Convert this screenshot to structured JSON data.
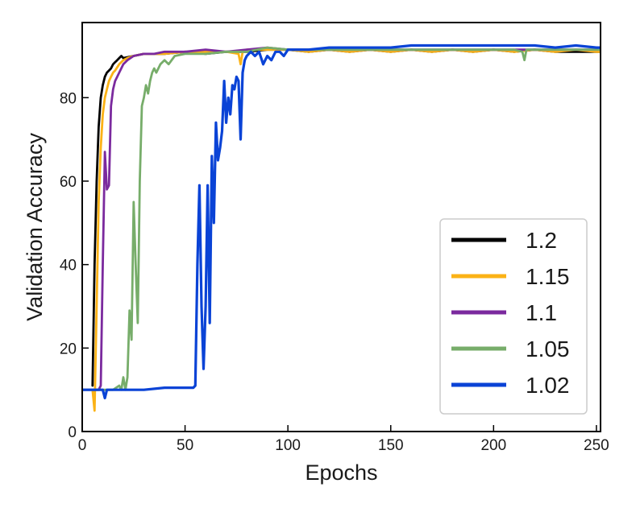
{
  "chart_data": {
    "type": "line",
    "title": "",
    "xlabel": "Epochs",
    "ylabel": "Validation Accuracy",
    "xlim": [
      0,
      252
    ],
    "ylim": [
      0,
      98
    ],
    "xticks": [
      0,
      50,
      100,
      150,
      200,
      250
    ],
    "yticks": [
      0,
      20,
      40,
      60,
      80
    ],
    "grid": false,
    "legend_position": "bottom-right",
    "series": [
      {
        "name": "1.2",
        "color": "#000000",
        "x": [
          5,
          6,
          7,
          8,
          9,
          10,
          11,
          12,
          13,
          14,
          15,
          16,
          17,
          18,
          19,
          20,
          25,
          30,
          40,
          50,
          60,
          70,
          80,
          90,
          100,
          110,
          120,
          130,
          140,
          150,
          160,
          170,
          180,
          190,
          200,
          210,
          220,
          230,
          240,
          250,
          252
        ],
        "y": [
          11,
          40,
          60,
          73,
          80,
          83,
          85,
          86,
          86.5,
          87,
          88,
          88.5,
          89,
          89.5,
          90,
          89.5,
          90,
          90.5,
          90.5,
          91,
          90.5,
          91,
          91,
          91.5,
          91.5,
          91,
          91.5,
          91,
          91.5,
          91,
          91.5,
          91,
          91.5,
          91,
          91.5,
          91,
          91.5,
          91,
          91,
          91,
          91
        ]
      },
      {
        "name": "1.15",
        "color": "#fbb216",
        "x": [
          5,
          6,
          7,
          8,
          9,
          10,
          11,
          12,
          13,
          14,
          15,
          16,
          18,
          20,
          22,
          25,
          30,
          40,
          50,
          60,
          70,
          76,
          77,
          78,
          80,
          90,
          100,
          110,
          120,
          130,
          140,
          150,
          160,
          170,
          180,
          190,
          200,
          210,
          220,
          230,
          240,
          250,
          252
        ],
        "y": [
          10,
          5,
          30,
          55,
          68,
          76,
          80,
          82,
          84,
          85,
          86,
          86.5,
          88,
          89,
          89.5,
          90,
          90.5,
          90.5,
          91,
          91,
          91,
          90.5,
          88,
          91,
          91.5,
          91.5,
          91.5,
          91,
          91.5,
          91,
          91.5,
          91,
          91.5,
          91,
          91.5,
          91,
          91.5,
          91,
          91.5,
          91,
          91.5,
          91,
          91
        ]
      },
      {
        "name": "1.1",
        "color": "#7b2a9e",
        "x": [
          0,
          5,
          8,
          9,
          10,
          11,
          12,
          13,
          14,
          15,
          16,
          17,
          18,
          20,
          22,
          25,
          30,
          35,
          40,
          50,
          60,
          70,
          80,
          90,
          100,
          110,
          120,
          130,
          140,
          150,
          160,
          170,
          180,
          190,
          200,
          210,
          220,
          230,
          240,
          250,
          252
        ],
        "y": [
          10,
          10,
          10,
          11,
          40,
          67,
          58,
          59,
          78,
          82,
          84,
          85,
          86,
          88,
          89,
          90,
          90.5,
          90.5,
          91,
          91,
          91.5,
          91,
          91.5,
          92,
          91.5,
          91.5,
          91.5,
          91.5,
          91.5,
          91.5,
          91.5,
          91.5,
          91.5,
          91.5,
          91.5,
          91.5,
          91.5,
          91.5,
          91.5,
          91.5,
          91.5
        ]
      },
      {
        "name": "1.05",
        "color": "#77ad6a",
        "x": [
          0,
          10,
          15,
          18,
          19,
          20,
          21,
          22,
          23,
          24,
          25,
          26,
          27,
          28,
          29,
          30,
          31,
          32,
          33,
          34,
          35,
          36,
          38,
          40,
          42,
          45,
          50,
          60,
          70,
          80,
          90,
          100,
          110,
          120,
          130,
          140,
          150,
          160,
          170,
          180,
          190,
          200,
          210,
          214,
          215,
          216,
          220,
          230,
          240,
          250,
          252
        ],
        "y": [
          10,
          10,
          10,
          11,
          10,
          13,
          10,
          13,
          29,
          22,
          55,
          40,
          26,
          60,
          78,
          80,
          83,
          81,
          84,
          86,
          87,
          86,
          88,
          89,
          88,
          90,
          90.5,
          90.5,
          91,
          91,
          92,
          91.5,
          91.5,
          91.5,
          91.5,
          91.5,
          91.5,
          91.5,
          91.5,
          91.5,
          91.5,
          91.5,
          91.5,
          91,
          89,
          91.5,
          91.5,
          91.5,
          91.5,
          91.5,
          91.5
        ]
      },
      {
        "name": "1.02",
        "color": "#0a43d6",
        "x": [
          0,
          5,
          10,
          11,
          12,
          13,
          20,
          30,
          40,
          50,
          54,
          55,
          56,
          57,
          58,
          59,
          60,
          61,
          62,
          63,
          64,
          65,
          66,
          67,
          68,
          69,
          70,
          71,
          72,
          73,
          74,
          75,
          76,
          77,
          78,
          79,
          80,
          82,
          84,
          86,
          88,
          90,
          92,
          94,
          96,
          98,
          100,
          110,
          120,
          130,
          140,
          150,
          160,
          170,
          180,
          190,
          200,
          210,
          220,
          230,
          240,
          250,
          252
        ],
        "y": [
          10,
          10,
          10,
          8,
          10,
          10,
          10,
          10,
          10.5,
          10.5,
          10.5,
          11,
          40,
          59,
          30,
          15,
          30,
          59,
          26,
          66,
          50,
          74,
          65,
          68,
          72,
          84,
          74,
          80,
          76,
          83,
          82,
          85,
          84,
          70,
          86,
          89,
          90,
          91,
          90,
          91,
          88,
          90,
          89,
          91,
          91,
          90,
          91.5,
          91.5,
          92,
          92,
          92,
          92,
          92.5,
          92.5,
          92.5,
          92.5,
          92.5,
          92.5,
          92.5,
          92,
          92.5,
          92,
          92
        ]
      }
    ]
  }
}
